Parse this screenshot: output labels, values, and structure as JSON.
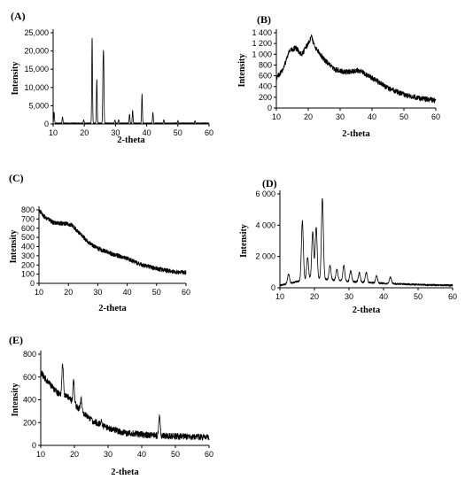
{
  "chart_data": [
    {
      "type": "line",
      "title": "(A)",
      "xlabel": "2-theta",
      "ylabel": "Intensity",
      "xlim": [
        10,
        60
      ],
      "ylim": [
        0,
        25000
      ],
      "xticks": [
        10,
        20,
        30,
        40,
        50,
        60
      ],
      "yticks": [
        0,
        5000,
        10000,
        15000,
        20000,
        25000
      ],
      "ytick_labels": [
        "0",
        "5,000",
        "10,000",
        "15,000",
        "20,000",
        "25,000"
      ],
      "baseline": 200,
      "peaks": [
        {
          "x": 10.3,
          "y": 3000
        },
        {
          "x": 13.0,
          "y": 1800
        },
        {
          "x": 19.8,
          "y": 900
        },
        {
          "x": 22.5,
          "y": 23500
        },
        {
          "x": 24.0,
          "y": 12000
        },
        {
          "x": 26.2,
          "y": 15500
        },
        {
          "x": 26.0,
          "y": 12500
        },
        {
          "x": 29.8,
          "y": 900
        },
        {
          "x": 31.0,
          "y": 1000
        },
        {
          "x": 34.5,
          "y": 2500
        },
        {
          "x": 35.5,
          "y": 3500
        },
        {
          "x": 38.5,
          "y": 8000
        },
        {
          "x": 42.0,
          "y": 3000
        },
        {
          "x": 45.5,
          "y": 900
        },
        {
          "x": 50.0,
          "y": 700
        },
        {
          "x": 55.5,
          "y": 600
        }
      ]
    },
    {
      "type": "line",
      "title": "(B)",
      "xlabel": "2-theta",
      "ylabel": "Intensity",
      "xlim": [
        10,
        60
      ],
      "ylim": [
        0,
        1400
      ],
      "xticks": [
        10,
        20,
        30,
        40,
        50,
        60
      ],
      "yticks": [
        0,
        200,
        400,
        600,
        800,
        1000,
        1200,
        1400
      ],
      "ytick_labels": [
        "0",
        "200",
        "400",
        "600",
        "800",
        "1 000",
        "1 200",
        "1 400"
      ],
      "profile": [
        {
          "x": 10,
          "y": 560
        },
        {
          "x": 12,
          "y": 700
        },
        {
          "x": 14,
          "y": 1050
        },
        {
          "x": 16,
          "y": 1120
        },
        {
          "x": 18,
          "y": 1000
        },
        {
          "x": 20,
          "y": 1200
        },
        {
          "x": 21,
          "y": 1330
        },
        {
          "x": 22,
          "y": 1150
        },
        {
          "x": 25,
          "y": 900
        },
        {
          "x": 28,
          "y": 720
        },
        {
          "x": 32,
          "y": 670
        },
        {
          "x": 36,
          "y": 700
        },
        {
          "x": 40,
          "y": 560
        },
        {
          "x": 45,
          "y": 370
        },
        {
          "x": 50,
          "y": 250
        },
        {
          "x": 55,
          "y": 180
        },
        {
          "x": 60,
          "y": 140
        }
      ]
    },
    {
      "type": "line",
      "title": "(C)",
      "xlabel": "2-theta",
      "ylabel": "Intensity",
      "xlim": [
        10,
        60
      ],
      "ylim": [
        0,
        800
      ],
      "xticks": [
        10,
        20,
        30,
        40,
        50,
        60
      ],
      "yticks": [
        0,
        100,
        200,
        300,
        400,
        500,
        600,
        700,
        800
      ],
      "ytick_labels": [
        "0",
        "100",
        "200",
        "300",
        "400",
        "500",
        "600",
        "700",
        "800"
      ],
      "profile": [
        {
          "x": 10,
          "y": 800
        },
        {
          "x": 12,
          "y": 720
        },
        {
          "x": 15,
          "y": 660
        },
        {
          "x": 18,
          "y": 650
        },
        {
          "x": 21,
          "y": 640
        },
        {
          "x": 24,
          "y": 540
        },
        {
          "x": 27,
          "y": 440
        },
        {
          "x": 30,
          "y": 380
        },
        {
          "x": 35,
          "y": 320
        },
        {
          "x": 40,
          "y": 270
        },
        {
          "x": 45,
          "y": 200
        },
        {
          "x": 50,
          "y": 160
        },
        {
          "x": 55,
          "y": 130
        },
        {
          "x": 60,
          "y": 115
        }
      ]
    },
    {
      "type": "line",
      "title": "(D)",
      "xlabel": "2-theta",
      "ylabel": "Intensity",
      "xlim": [
        10,
        60
      ],
      "ylim": [
        0,
        6000
      ],
      "xticks": [
        10,
        20,
        30,
        40,
        50,
        60
      ],
      "yticks": [
        0,
        2000,
        4000,
        6000
      ],
      "ytick_labels": [
        "0",
        "2 000",
        "4 000",
        "6 000"
      ],
      "baseline_profile": [
        {
          "x": 10,
          "y": 150
        },
        {
          "x": 15,
          "y": 400
        },
        {
          "x": 20,
          "y": 600
        },
        {
          "x": 30,
          "y": 400
        },
        {
          "x": 40,
          "y": 280
        },
        {
          "x": 50,
          "y": 200
        },
        {
          "x": 60,
          "y": 150
        }
      ],
      "peaks": [
        {
          "x": 12.5,
          "y": 600
        },
        {
          "x": 16.5,
          "y": 3800
        },
        {
          "x": 18.0,
          "y": 1400
        },
        {
          "x": 19.5,
          "y": 3000
        },
        {
          "x": 20.5,
          "y": 3300
        },
        {
          "x": 22.3,
          "y": 5200
        },
        {
          "x": 24.5,
          "y": 900
        },
        {
          "x": 26.5,
          "y": 700
        },
        {
          "x": 28.5,
          "y": 1000
        },
        {
          "x": 30.5,
          "y": 700
        },
        {
          "x": 33.0,
          "y": 600
        },
        {
          "x": 35.0,
          "y": 650
        },
        {
          "x": 38.0,
          "y": 450
        },
        {
          "x": 42.0,
          "y": 400
        }
      ]
    },
    {
      "type": "line",
      "title": "(E)",
      "xlabel": "2-theta",
      "ylabel": "Intensity",
      "xlim": [
        10,
        60
      ],
      "ylim": [
        0,
        800
      ],
      "xticks": [
        10,
        20,
        30,
        40,
        50,
        60
      ],
      "yticks": [
        0,
        200,
        400,
        600,
        800
      ],
      "ytick_labels": [
        "0",
        "200",
        "400",
        "600",
        "800"
      ],
      "profile": [
        {
          "x": 10,
          "y": 640
        },
        {
          "x": 12,
          "y": 560
        },
        {
          "x": 15,
          "y": 460
        },
        {
          "x": 18,
          "y": 430
        },
        {
          "x": 21,
          "y": 330
        },
        {
          "x": 25,
          "y": 220
        },
        {
          "x": 30,
          "y": 150
        },
        {
          "x": 35,
          "y": 110
        },
        {
          "x": 40,
          "y": 95
        },
        {
          "x": 45,
          "y": 85
        },
        {
          "x": 50,
          "y": 80
        },
        {
          "x": 55,
          "y": 75
        },
        {
          "x": 60,
          "y": 72
        }
      ],
      "peaks": [
        {
          "x": 16.5,
          "y": 270
        },
        {
          "x": 19.8,
          "y": 190
        },
        {
          "x": 22.0,
          "y": 110
        },
        {
          "x": 28.0,
          "y": 40
        },
        {
          "x": 45.3,
          "y": 170
        }
      ]
    }
  ]
}
